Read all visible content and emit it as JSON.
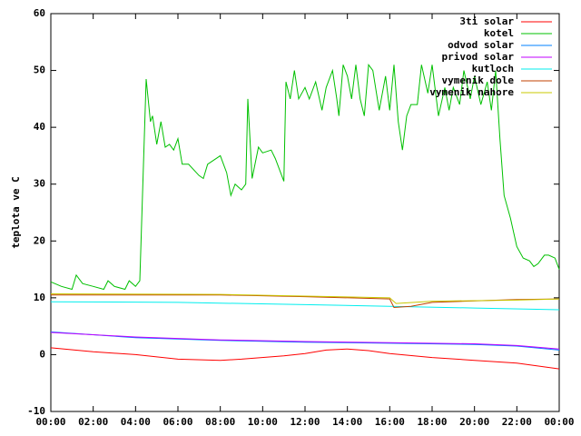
{
  "chart_data": {
    "type": "line",
    "ylabel": "teplota ve C",
    "xlim": [
      0,
      24
    ],
    "ylim": [
      -10,
      60
    ],
    "yticks": [
      -10,
      0,
      10,
      20,
      30,
      40,
      50,
      60
    ],
    "xticks": [
      {
        "value": 0,
        "label": "00:00"
      },
      {
        "value": 2,
        "label": "02:00"
      },
      {
        "value": 4,
        "label": "04:00"
      },
      {
        "value": 6,
        "label": "06:00"
      },
      {
        "value": 8,
        "label": "08:00"
      },
      {
        "value": 10,
        "label": "10:00"
      },
      {
        "value": 12,
        "label": "12:00"
      },
      {
        "value": 14,
        "label": "14:00"
      },
      {
        "value": 16,
        "label": "16:00"
      },
      {
        "value": 18,
        "label": "18:00"
      },
      {
        "value": 20,
        "label": "20:00"
      },
      {
        "value": 22,
        "label": "22:00"
      },
      {
        "value": 24,
        "label": "00:00"
      }
    ],
    "legend": "upper right",
    "series": [
      {
        "name": "3ti solar",
        "color": "#ff0000",
        "x": [
          0,
          2,
          4,
          6,
          8,
          9,
          11,
          12,
          13,
          14,
          15,
          16,
          18,
          20,
          22,
          24
        ],
        "values": [
          1.2,
          0.5,
          0,
          -0.8,
          -1,
          -0.8,
          -0.2,
          0.2,
          0.8,
          1,
          0.7,
          0.2,
          -0.5,
          -1,
          -1.5,
          -2.5
        ]
      },
      {
        "name": "kotel",
        "color": "#00c000",
        "x": [
          0,
          0.5,
          1,
          1.2,
          1.5,
          2,
          2.5,
          2.7,
          3,
          3.5,
          3.7,
          4,
          4.2,
          4.5,
          4.7,
          4.8,
          5,
          5.2,
          5.4,
          5.6,
          5.8,
          6,
          6.2,
          6.5,
          7,
          7.2,
          7.4,
          8,
          8.3,
          8.5,
          8.7,
          9,
          9.2,
          9.3,
          9.5,
          9.8,
          10,
          10.4,
          10.6,
          11,
          11.1,
          11.3,
          11.5,
          11.7,
          12,
          12.2,
          12.5,
          12.8,
          13,
          13.3,
          13.5,
          13.6,
          13.8,
          14,
          14.2,
          14.4,
          14.6,
          14.8,
          15,
          15.2,
          15.5,
          15.8,
          16,
          16.2,
          16.4,
          16.6,
          16.8,
          17,
          17.3,
          17.5,
          17.8,
          18,
          18.3,
          18.6,
          18.8,
          19,
          19.3,
          19.5,
          19.8,
          20,
          20.3,
          20.6,
          20.8,
          21,
          21.2,
          21.4,
          21.7,
          22,
          22.3,
          22.6,
          22.8,
          23,
          23.3,
          23.5,
          23.8,
          24
        ],
        "values": [
          12.8,
          12,
          11.5,
          14,
          12.5,
          12,
          11.5,
          13,
          12,
          11.5,
          13,
          12,
          13,
          48.5,
          41,
          42,
          37,
          41,
          36.5,
          37,
          36,
          38,
          33.5,
          33.5,
          31.5,
          31,
          33.5,
          35,
          32,
          28,
          30,
          29,
          30,
          45,
          31,
          36.5,
          35.5,
          36,
          34.5,
          30.5,
          48,
          45,
          50,
          45,
          47,
          45,
          48,
          43,
          47,
          50,
          45,
          42,
          51,
          49,
          45,
          51,
          45,
          42,
          51,
          50,
          43,
          49,
          43,
          51,
          41,
          36,
          42,
          44,
          44,
          51,
          46,
          51,
          42,
          47,
          43,
          47,
          44,
          50,
          45,
          49,
          44,
          48,
          43,
          50,
          38,
          28,
          24,
          19,
          17,
          16.5,
          15.5,
          16,
          17.5,
          17.5,
          17,
          15
        ]
      },
      {
        "name": "odvod solar",
        "color": "#0080ff",
        "x": [
          0,
          4,
          8,
          12,
          16,
          20,
          22,
          24
        ],
        "values": [
          4,
          3,
          2.5,
          2.2,
          2,
          1.8,
          1.5,
          0.8
        ]
      },
      {
        "name": "privod solar",
        "color": "#c000ff",
        "x": [
          0,
          4,
          8,
          12,
          16,
          20,
          22,
          24
        ],
        "values": [
          3.9,
          3.1,
          2.6,
          2.3,
          2.1,
          1.9,
          1.6,
          1
        ]
      },
      {
        "name": "kutloch",
        "color": "#00eeee",
        "x": [
          0,
          6,
          12,
          16,
          20,
          24
        ],
        "values": [
          9.3,
          9.2,
          8.8,
          8.5,
          8.2,
          7.9
        ]
      },
      {
        "name": "vymenik dole",
        "color": "#c04000",
        "x": [
          0,
          8,
          12,
          16,
          16.2,
          17,
          18,
          22,
          24
        ],
        "values": [
          10.5,
          10.5,
          10.2,
          9.8,
          8.3,
          8.5,
          9.2,
          9.7,
          9.8
        ]
      },
      {
        "name": "vymenik nahore",
        "color": "#c8c800",
        "x": [
          0,
          8,
          12,
          16,
          16.3,
          18,
          22,
          24
        ],
        "values": [
          10.7,
          10.6,
          10.3,
          10,
          9,
          9.4,
          9.6,
          9.8
        ]
      }
    ]
  }
}
